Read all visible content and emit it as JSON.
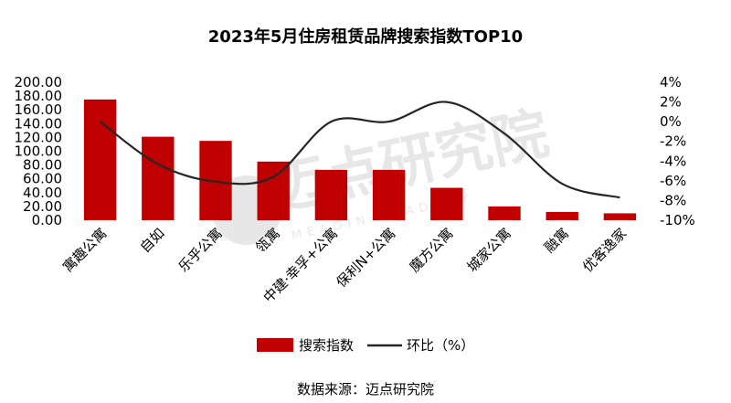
{
  "chart_data": {
    "type": "bar",
    "title": "2023年5月住房租赁品牌搜索指数TOP10",
    "categories": [
      "寓趣公寓",
      "自如",
      "乐乎公寓",
      "瓴寓",
      "中建·幸孚+公寓",
      "保利N+公寓",
      "魔方公寓",
      "城家公寓",
      "融寓",
      "优客逸家"
    ],
    "series": [
      {
        "name": "搜索指数",
        "type": "bar",
        "axis": "left",
        "color": "#c00000",
        "values": [
          175,
          121,
          115,
          85,
          73,
          73,
          47,
          20,
          12,
          10
        ]
      },
      {
        "name": "环比（%）",
        "type": "line",
        "axis": "right",
        "color": "#262626",
        "values": [
          0.0,
          -4.3,
          -6.1,
          -5.6,
          0.0,
          0.0,
          2.0,
          -1.2,
          -6.3,
          -7.7
        ]
      }
    ],
    "y_left": {
      "min": 0,
      "max": 200,
      "step": 20,
      "ticks": [
        "0.00",
        "20.00",
        "40.00",
        "60.00",
        "80.00",
        "100.00",
        "120.00",
        "140.00",
        "160.00",
        "180.00",
        "200.00"
      ]
    },
    "y_right": {
      "min": -10,
      "max": 4,
      "step": 2,
      "ticks": [
        "-10%",
        "-8%",
        "-6%",
        "-4%",
        "-2%",
        "0%",
        "2%",
        "4%"
      ]
    },
    "legend": {
      "position": "bottom"
    },
    "grid": false
  },
  "watermark": {
    "text": "迈点研究院",
    "subtext": "MEADIN ACADEMY"
  },
  "source": "数据来源：迈点研究院"
}
